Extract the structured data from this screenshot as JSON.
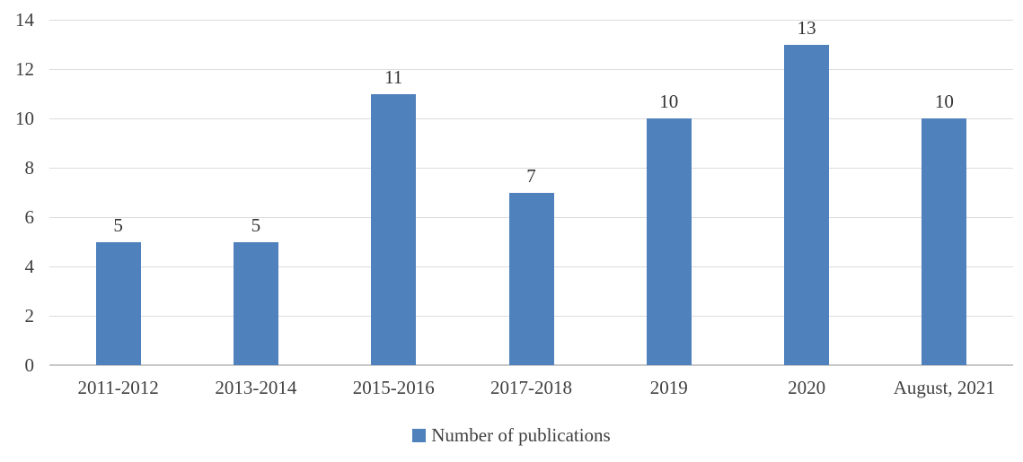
{
  "chart_data": {
    "type": "bar",
    "categories": [
      "2011-2012",
      "2013-2014",
      "2015-2016",
      "2017-2018",
      "2019",
      "2020",
      "August, 2021"
    ],
    "values": [
      5,
      5,
      11,
      7,
      10,
      13,
      10
    ],
    "title": "",
    "xlabel": "",
    "ylabel": "",
    "ylim": [
      0,
      14
    ],
    "yticks": [
      0,
      2,
      4,
      6,
      8,
      10,
      12,
      14
    ],
    "grid": true,
    "legend": {
      "label": "Number of publications",
      "position": "bottom"
    },
    "colors": {
      "bar": "#4F81BD",
      "gridline": "#DCDCDC",
      "axis_line": "#C8C8C8",
      "tick_label": "#404040",
      "value_label": "#333333",
      "legend_text": "#404040",
      "background": "#ffffff"
    }
  }
}
